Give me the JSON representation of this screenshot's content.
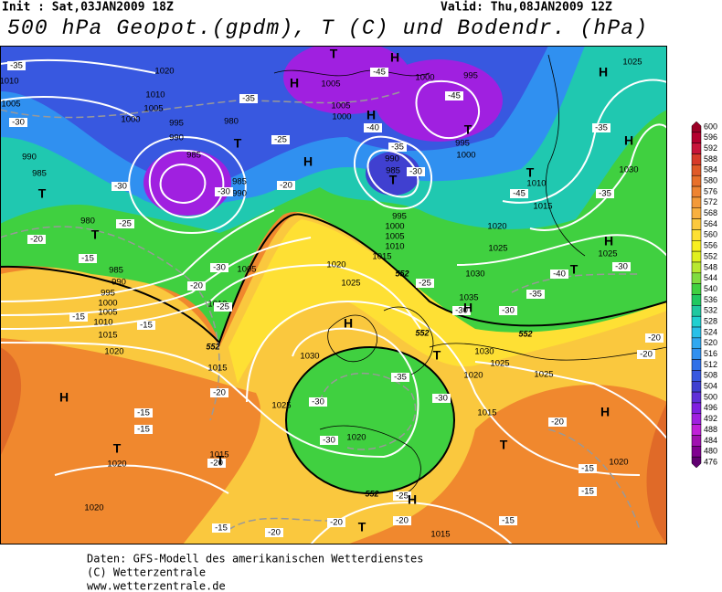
{
  "header": {
    "init": "Init : Sat,03JAN2009 18Z",
    "valid": "Valid: Thu,08JAN2009 12Z",
    "title": "500 hPa Geopot.(gpdm), T (C) und Bodendr. (hPa)"
  },
  "colorbar": {
    "levels": [
      600,
      596,
      592,
      588,
      584,
      580,
      576,
      572,
      568,
      564,
      560,
      556,
      552,
      548,
      544,
      540,
      536,
      532,
      528,
      524,
      520,
      516,
      512,
      508,
      504,
      500,
      496,
      492,
      488,
      484,
      480,
      476
    ],
    "colors": [
      "#9b0026",
      "#b4002e",
      "#c8143a",
      "#d73a2a",
      "#e05a28",
      "#e8702a",
      "#ee8432",
      "#f39a3a",
      "#f8b040",
      "#fcc83e",
      "#fee034",
      "#f8f020",
      "#e0f020",
      "#b8e830",
      "#80dc40",
      "#40d040",
      "#20c860",
      "#20c8a0",
      "#20d0d0",
      "#28c0e8",
      "#30a8f0",
      "#3090f0",
      "#3070e8",
      "#3858e0",
      "#4040d0",
      "#6030d8",
      "#8020e0",
      "#a020e0",
      "#c020d8",
      "#a010b0",
      "#800090",
      "#600070"
    ]
  },
  "map": {
    "pressure_labels": [
      1020,
      1010,
      1005,
      1000,
      995,
      990,
      985,
      980,
      990,
      985,
      1005,
      1005,
      1000,
      1000,
      995,
      995,
      1000,
      990,
      985,
      995,
      1000,
      1005,
      1010,
      1015,
      1020,
      1025,
      1030,
      1025,
      1020,
      1015,
      1015,
      1020,
      1025,
      1030,
      1035,
      1030,
      1025,
      1025,
      1020,
      1020,
      1020,
      1020,
      1015,
      1015,
      1025,
      1030,
      1025,
      1010,
      1015,
      985,
      980,
      985,
      990,
      995,
      1000,
      1005,
      1010,
      1015,
      1020,
      1010,
      1005,
      1010,
      1005,
      990
    ],
    "temperature_labels": [
      -35,
      -30,
      -30,
      -25,
      -20,
      -15,
      -15,
      -20,
      -25,
      -30,
      -20,
      -25,
      -30,
      -35,
      -40,
      -45,
      -45,
      -35,
      -30,
      -45,
      -40,
      -35,
      -30,
      -35,
      -35,
      -30,
      -20,
      -20,
      -35,
      -30,
      -30,
      -30,
      -25,
      -20,
      -20,
      -20,
      -15,
      -15,
      -15,
      -15,
      -20,
      -20,
      -15,
      -15,
      -20,
      -15,
      -25,
      -30
    ],
    "highs_lows": [
      "T",
      "H",
      "H",
      "T",
      "H",
      "H",
      "T",
      "H",
      "H",
      "T",
      "T",
      "T",
      "T",
      "H",
      "T",
      "H",
      "H",
      "T",
      "H",
      "T",
      "T",
      "H",
      "T",
      "H",
      "T"
    ],
    "geopotential_labels": [
      552,
      552,
      552,
      552,
      552
    ]
  },
  "footer": {
    "lines": [
      "Daten: GFS-Modell des amerikanischen Wetterdienstes",
      "(C) Wetterzentrale",
      "www.wetterzentrale.de"
    ]
  }
}
